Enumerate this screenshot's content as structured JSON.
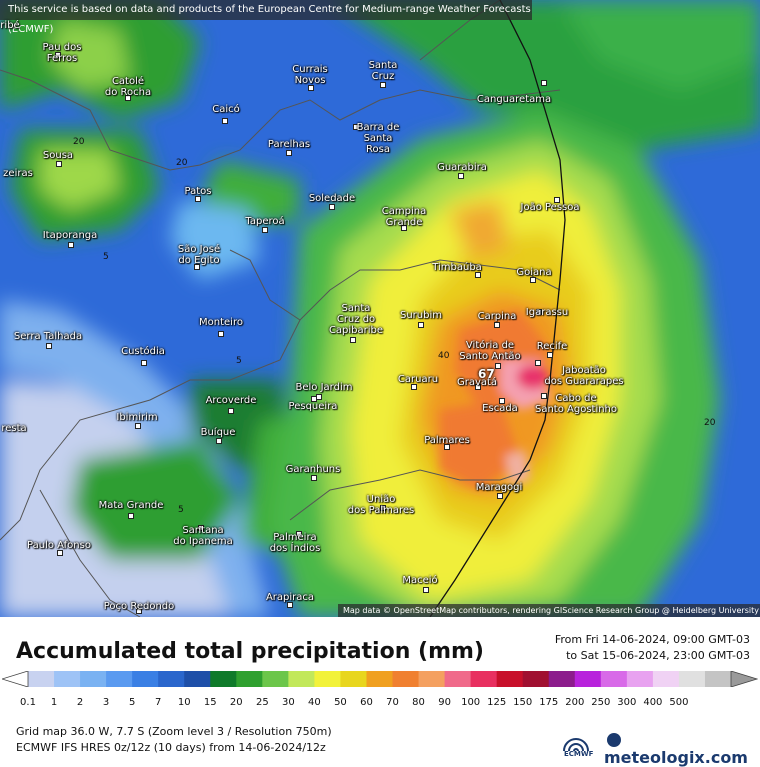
{
  "banner": "This service is based on data and products of the European Centre for Medium-range Weather Forecasts (ECMWF)",
  "attribution": "Map data © OpenStreetMap contributors, rendering GIScience Research Group @ Heidelberg University",
  "marker": "67",
  "cities": [
    {
      "name": "ribé"
    },
    {
      "name": "Pau dos\nFerros"
    },
    {
      "name": "Catolé\ndo Rocha"
    },
    {
      "name": "Currais\nNovos"
    },
    {
      "name": "Santa\nCruz"
    },
    {
      "name": "Caicó"
    },
    {
      "name": "Canguaretama"
    },
    {
      "name": "Barra de\nSanta\nRosa"
    },
    {
      "name": "Parelhas"
    },
    {
      "name": "Sousa"
    },
    {
      "name": "zeiras"
    },
    {
      "name": "Patos"
    },
    {
      "name": "Guarabira"
    },
    {
      "name": "Soledade"
    },
    {
      "name": "Campina\nGrande"
    },
    {
      "name": "João Pessoa"
    },
    {
      "name": "Taperoá"
    },
    {
      "name": "Itaporanga"
    },
    {
      "name": "São José\ndo Egito"
    },
    {
      "name": "Timbaúba"
    },
    {
      "name": "Goiana"
    },
    {
      "name": "Santa\nCruz do\nCapibaribe"
    },
    {
      "name": "Surubim"
    },
    {
      "name": "Carpina"
    },
    {
      "name": "Igarassu"
    },
    {
      "name": "Serra Talhada"
    },
    {
      "name": "Monteiro"
    },
    {
      "name": "Vitória de\nSanto Antão"
    },
    {
      "name": "Recife"
    },
    {
      "name": "Custódia"
    },
    {
      "name": "Belo Jardim"
    },
    {
      "name": "Caruaru"
    },
    {
      "name": "Gravatá"
    },
    {
      "name": "Jaboatão\ndos Guararapes"
    },
    {
      "name": "Pesqueira"
    },
    {
      "name": "Arcoverde"
    },
    {
      "name": "Cabo de\nSanto Agostinho"
    },
    {
      "name": "Ibimirim"
    },
    {
      "name": "Escada"
    },
    {
      "name": "resta"
    },
    {
      "name": "Buíque"
    },
    {
      "name": "Palmares"
    },
    {
      "name": "Garanhuns"
    },
    {
      "name": "União\ndos Palmares"
    },
    {
      "name": "Maragogi"
    },
    {
      "name": "Mata Grande"
    },
    {
      "name": "Santana\ndo Ipanema"
    },
    {
      "name": "Palmeira\ndos Índios"
    },
    {
      "name": "Paulo Afonso"
    },
    {
      "name": "Maceió"
    },
    {
      "name": "Arapiraca"
    },
    {
      "name": "Poço Redondo"
    }
  ],
  "isolines": [
    "20",
    "20",
    "5",
    "5",
    "40",
    "5",
    "20"
  ],
  "legend": {
    "title": "Accumulated total precipitation (mm)",
    "from": "From Fri 14-06-2024, 09:00 GMT-03",
    "to": "to Sat 15-06-2024, 23:00 GMT-03",
    "ticks": [
      "0.1",
      "1",
      "2",
      "3",
      "5",
      "7",
      "10",
      "15",
      "20",
      "25",
      "30",
      "40",
      "50",
      "60",
      "70",
      "80",
      "90",
      "100",
      "125",
      "150",
      "175",
      "200",
      "250",
      "300",
      "400",
      "500"
    ],
    "colors": [
      "#c8d2f0",
      "#9ec3f6",
      "#7ab2f2",
      "#5a9af0",
      "#3a7fe4",
      "#2a66cc",
      "#1e4fa8",
      "#0f7a2a",
      "#2fa02f",
      "#6cc64a",
      "#c2e85a",
      "#f2f23a",
      "#e8d61e",
      "#f0a020",
      "#f08030",
      "#f4a060",
      "#f06a8a",
      "#e83060",
      "#c8102a",
      "#a01030",
      "#8c1c8c",
      "#b822dc",
      "#d86ae8",
      "#e8a2f0",
      "#f0d2f4",
      "#e0e0e0",
      "#c4c4c4"
    ],
    "grid_info": "Grid map 36.0 W, 7.7 S (Zoom level 3 / Resolution 750m)",
    "model_info": "ECMWF IFS HRES 0z/12z (10 days) from 14-06-2024/12z"
  },
  "logos": {
    "ecmwf": "ECMWF",
    "meteologix": "meteologix.com"
  }
}
